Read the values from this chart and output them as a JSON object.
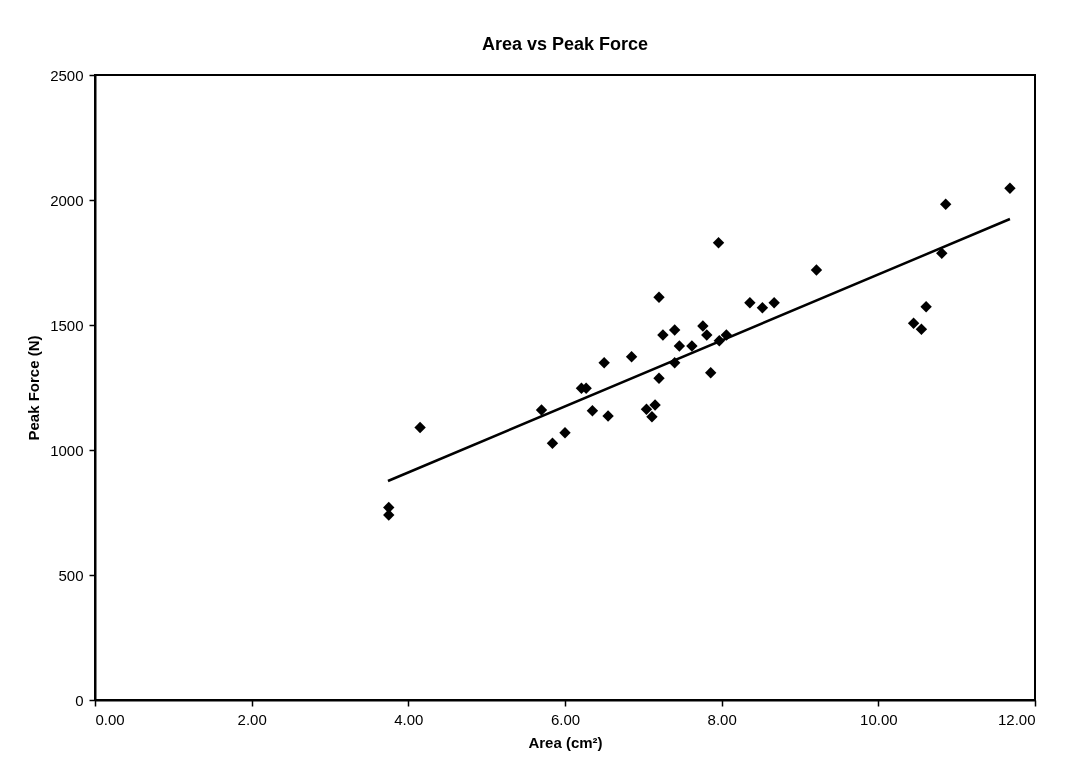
{
  "chart_data": {
    "type": "scatter",
    "title": "Area vs Peak Force",
    "xlabel": "Area (cm²)",
    "ylabel": "Peak Force (N)",
    "xlim": [
      0,
      12
    ],
    "ylim": [
      0,
      2500
    ],
    "xticks": [
      {
        "value": 0,
        "label": "0.00"
      },
      {
        "value": 2,
        "label": "2.00"
      },
      {
        "value": 4,
        "label": "4.00"
      },
      {
        "value": 6,
        "label": "6.00"
      },
      {
        "value": 8,
        "label": "8.00"
      },
      {
        "value": 10,
        "label": "10.00"
      },
      {
        "value": 12,
        "label": "12.00"
      }
    ],
    "yticks": [
      0,
      500,
      1000,
      1500,
      2000,
      2500
    ],
    "grid": false,
    "series": [
      {
        "color": "#000000",
        "marker": "diamond",
        "x": [
          3.75,
          3.75,
          4.15,
          5.7,
          5.84,
          6.0,
          6.21,
          6.27,
          6.35,
          6.5,
          6.55,
          6.85,
          7.04,
          7.11,
          7.15,
          7.2,
          7.2,
          7.25,
          7.4,
          7.4,
          7.46,
          7.62,
          7.76,
          7.81,
          7.86,
          7.96,
          7.97,
          8.06,
          8.36,
          8.52,
          8.67,
          9.21,
          10.45,
          10.55,
          10.61,
          10.81,
          10.86,
          11.68
        ],
        "values": [
          770,
          740,
          1090,
          1160,
          1027,
          1069,
          1247,
          1247,
          1157,
          1349,
          1136,
          1373,
          1163,
          1133,
          1180,
          1611,
          1287,
          1460,
          1480,
          1349,
          1416,
          1416,
          1496,
          1460,
          1309,
          1829,
          1437,
          1460,
          1589,
          1569,
          1589,
          1720,
          1507,
          1483,
          1573,
          1787,
          1983,
          2047
        ]
      },
      {
        "type": "line",
        "color": "#000000",
        "marker": "none",
        "line_style": "solid",
        "x": [
          3.74,
          11.68
        ],
        "values": [
          876,
          1924
        ]
      }
    ]
  }
}
